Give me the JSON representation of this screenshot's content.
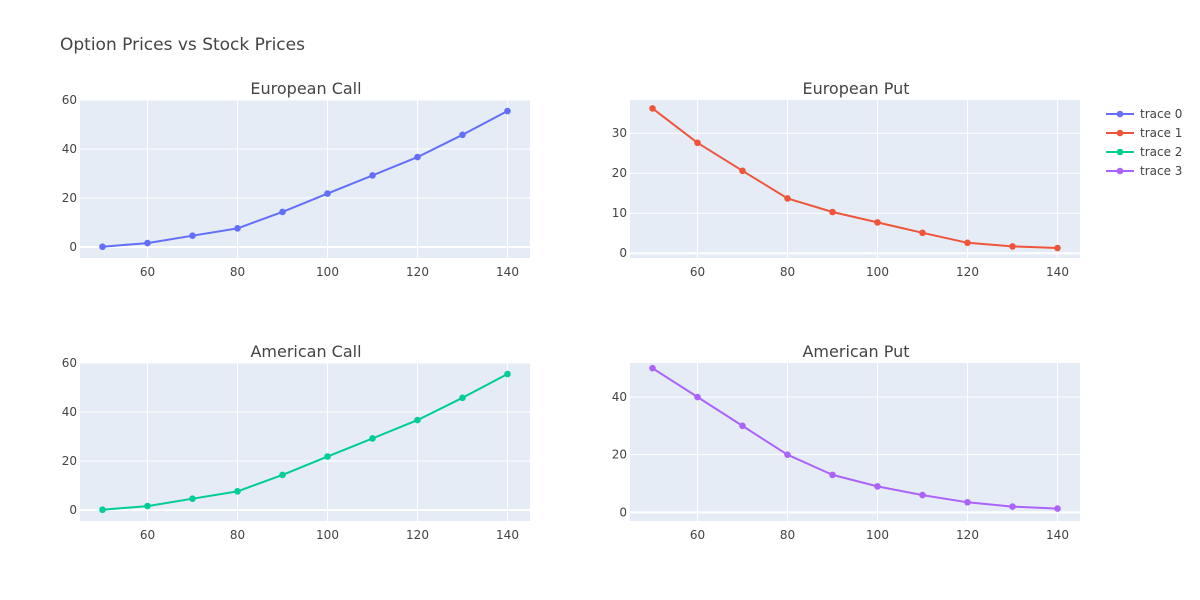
{
  "title": "Option Prices vs Stock Prices",
  "colors": {
    "plot_bg": "#E5ECF6",
    "grid": "#FFFFFF",
    "text": "#444444"
  },
  "legend": {
    "placement": "top-right",
    "entries": [
      {
        "name": "trace 0",
        "color": "#636EFA"
      },
      {
        "name": "trace 1",
        "color": "#EF553B"
      },
      {
        "name": "trace 2",
        "color": "#00CC96"
      },
      {
        "name": "trace 3",
        "color": "#AB63FA"
      }
    ]
  },
  "chart_data": [
    {
      "type": "line",
      "title": "European Call",
      "series_name": "trace 0",
      "color": "#636EFA",
      "x": [
        50,
        60,
        70,
        80,
        90,
        100,
        110,
        120,
        130,
        140
      ],
      "y": [
        0.1,
        1.6,
        4.6,
        7.6,
        14.3,
        21.8,
        29.2,
        36.7,
        45.8,
        55.5
      ],
      "xticks": [
        60,
        80,
        100,
        120,
        140
      ],
      "yticks": [
        0,
        20,
        40,
        60
      ],
      "xlim": [
        45,
        145
      ],
      "ylim": [
        -4.5,
        60
      ]
    },
    {
      "type": "line",
      "title": "European Put",
      "series_name": "trace 1",
      "color": "#EF553B",
      "x": [
        50,
        60,
        70,
        80,
        90,
        100,
        110,
        120,
        130,
        140
      ],
      "y": [
        36.2,
        27.6,
        20.6,
        13.7,
        10.3,
        7.7,
        5.1,
        2.6,
        1.7,
        1.3
      ],
      "xticks": [
        60,
        80,
        100,
        120,
        140
      ],
      "yticks": [
        0,
        10,
        20,
        30
      ],
      "xlim": [
        45,
        145
      ],
      "ylim": [
        -1.2,
        38.3
      ]
    },
    {
      "type": "line",
      "title": "American Call",
      "series_name": "trace 2",
      "color": "#00CC96",
      "x": [
        50,
        60,
        70,
        80,
        90,
        100,
        110,
        120,
        130,
        140
      ],
      "y": [
        0.1,
        1.6,
        4.6,
        7.6,
        14.3,
        21.8,
        29.2,
        36.7,
        45.8,
        55.5
      ],
      "xticks": [
        60,
        80,
        100,
        120,
        140
      ],
      "yticks": [
        0,
        20,
        40,
        60
      ],
      "xlim": [
        45,
        145
      ],
      "ylim": [
        -4.5,
        60
      ]
    },
    {
      "type": "line",
      "title": "American Put",
      "series_name": "trace 3",
      "color": "#AB63FA",
      "x": [
        50,
        60,
        70,
        80,
        90,
        100,
        110,
        120,
        130,
        140
      ],
      "y": [
        50,
        40,
        30,
        20,
        13,
        9,
        6,
        3.5,
        2,
        1.3
      ],
      "xticks": [
        60,
        80,
        100,
        120,
        140
      ],
      "yticks": [
        0,
        20,
        40
      ],
      "xlim": [
        45,
        145
      ],
      "ylim": [
        -3,
        51.8
      ]
    }
  ]
}
